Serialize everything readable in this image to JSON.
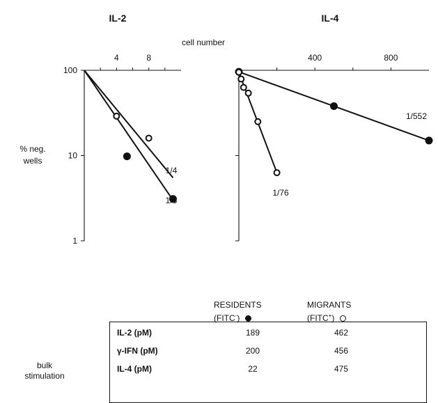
{
  "chart_data": [
    {
      "type": "scatter",
      "title": "IL-2",
      "ylabel": "% neg. wells",
      "yscale": "log",
      "ylim": [
        1,
        100
      ],
      "xlim": [
        0,
        12
      ],
      "x_ticks": [
        2,
        4,
        6,
        8,
        10
      ],
      "x_tick_labels": [
        "4",
        "8"
      ],
      "x_tick_label_values": [
        4,
        8
      ],
      "y_tick_labels": [
        "100",
        "10",
        "1"
      ],
      "y_tick_label_values": [
        100,
        10,
        1
      ],
      "series": [
        {
          "group": "residents",
          "marker": "filled",
          "points": [
            {
              "x": 5.3,
              "y": 9.8
            },
            {
              "x": 11,
              "y": 3.1
            }
          ],
          "fit": {
            "from": [
              0,
              100
            ],
            "to": [
              11,
              3.0
            ],
            "label": "1/3"
          }
        },
        {
          "group": "migrants",
          "marker": "open",
          "points": [
            {
              "x": 4,
              "y": 29
            },
            {
              "x": 8,
              "y": 16
            }
          ],
          "fit": {
            "from": [
              0,
              100
            ],
            "to": [
              11,
              5.5
            ],
            "label": "1/4"
          }
        }
      ]
    },
    {
      "type": "scatter",
      "title": "IL-4",
      "xlabel": "cell number",
      "yscale": "log",
      "ylim": [
        1,
        100
      ],
      "xlim": [
        0,
        1000
      ],
      "x_ticks": [
        200,
        400,
        600,
        800
      ],
      "x_tick_labels": [
        "400",
        "800"
      ],
      "x_tick_label_values": [
        400,
        800
      ],
      "series": [
        {
          "group": "residents",
          "marker": "filled",
          "points": [
            {
              "x": 0,
              "y": 96
            },
            {
              "x": 500,
              "y": 38
            },
            {
              "x": 1000,
              "y": 15
            }
          ],
          "fit": {
            "from": [
              0,
              96
            ],
            "to": [
              1000,
              15
            ],
            "label": "1/552"
          }
        },
        {
          "group": "migrants",
          "marker": "open",
          "points": [
            {
              "x": 0,
              "y": 95
            },
            {
              "x": 12,
              "y": 79
            },
            {
              "x": 25,
              "y": 63
            },
            {
              "x": 50,
              "y": 54
            },
            {
              "x": 100,
              "y": 25
            },
            {
              "x": 200,
              "y": 6.3
            }
          ],
          "fit": {
            "from": [
              0,
              95
            ],
            "to": [
              200,
              6.3
            ],
            "label": "1/76"
          }
        }
      ]
    }
  ],
  "legend": {
    "residents": {
      "title": "RESIDENTS",
      "sub": "(FITC",
      "sup": "-",
      "close": ")"
    },
    "migrants": {
      "title": "MIGRANTS",
      "sub": "(FITC",
      "sup": "+",
      "close": ")"
    }
  },
  "table": {
    "group_label_line1": "bulk",
    "group_label_line2": "stimulation",
    "rows": [
      {
        "label": "IL-2 (pM)",
        "residents": "189",
        "migrants": "462"
      },
      {
        "label": "γ-IFN (pM)",
        "residents": "200",
        "migrants": "456"
      },
      {
        "label": "IL-4 (pM)",
        "residents": "22",
        "migrants": "475"
      }
    ]
  }
}
